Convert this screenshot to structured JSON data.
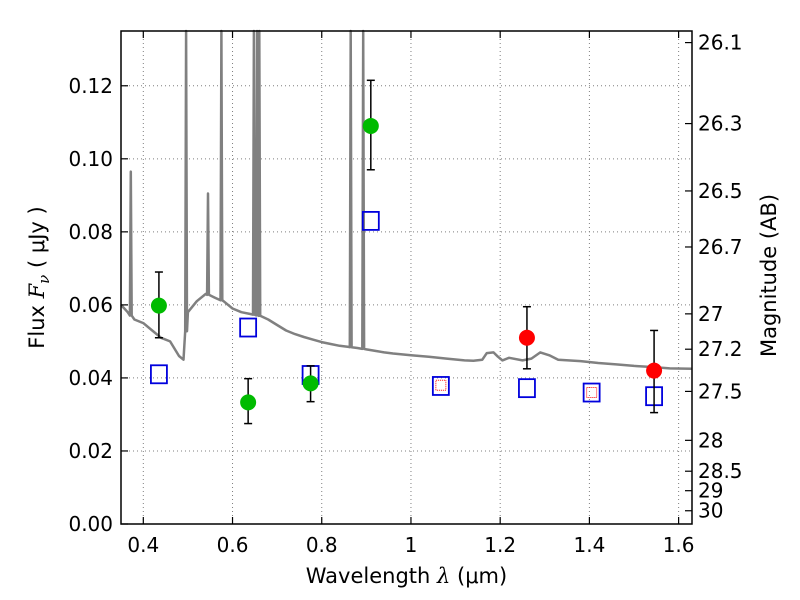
{
  "chart_data": {
    "type": "scatter",
    "xlabel": {
      "prefix": "Wavelength  ",
      "sym": "λ",
      "suffix": " (μm)"
    },
    "ylabel": {
      "prefix": "Flux  ",
      "sym": "F",
      "sub": "ν",
      "suffix": "  ( μJy )"
    },
    "ylabel_right": "Magnitude (AB)",
    "xlim": [
      0.35,
      1.63
    ],
    "ylim": [
      0,
      0.135
    ],
    "grid": true,
    "x_ticks": [
      {
        "v": 0.4,
        "label": "0.4"
      },
      {
        "v": 0.6,
        "label": "0.6"
      },
      {
        "v": 0.8,
        "label": "0.8"
      },
      {
        "v": 1.0,
        "label": "1"
      },
      {
        "v": 1.2,
        "label": "1.2"
      },
      {
        "v": 1.4,
        "label": "1.4"
      },
      {
        "v": 1.6,
        "label": "1.6"
      }
    ],
    "y_ticks": [
      {
        "v": 0.0,
        "label": "0.00"
      },
      {
        "v": 0.02,
        "label": "0.02"
      },
      {
        "v": 0.04,
        "label": "0.04"
      },
      {
        "v": 0.06,
        "label": "0.06"
      },
      {
        "v": 0.08,
        "label": "0.08"
      },
      {
        "v": 0.1,
        "label": "0.10"
      },
      {
        "v": 0.12,
        "label": "0.12"
      }
    ],
    "mag_ticks": [
      {
        "mag": 26.1,
        "label": "26.1"
      },
      {
        "mag": 26.3,
        "label": "26.3"
      },
      {
        "mag": 26.5,
        "label": "26.5"
      },
      {
        "mag": 26.7,
        "label": "26.7"
      },
      {
        "mag": 27,
        "label": "27"
      },
      {
        "mag": 27.2,
        "label": "27.2"
      },
      {
        "mag": 27.5,
        "label": "27.5"
      },
      {
        "mag": 28,
        "label": "28"
      },
      {
        "mag": 28.5,
        "label": "28.5"
      },
      {
        "mag": 29,
        "label": "29"
      },
      {
        "mag": 30,
        "label": "30"
      }
    ],
    "green_points": [
      {
        "x": 0.435,
        "y": 0.0598,
        "yerr_lo": 0.0088,
        "yerr_hi": 0.0092
      },
      {
        "x": 0.635,
        "y": 0.0333,
        "yerr_lo": 0.0058,
        "yerr_hi": 0.0065
      },
      {
        "x": 0.775,
        "y": 0.0385,
        "yerr_lo": 0.005,
        "yerr_hi": 0.0048
      },
      {
        "x": 0.91,
        "y": 0.109,
        "yerr_lo": 0.012,
        "yerr_hi": 0.0125
      }
    ],
    "red_points": [
      {
        "x": 1.26,
        "y": 0.051,
        "yerr_lo": 0.0085,
        "yerr_hi": 0.0085
      },
      {
        "x": 1.545,
        "y": 0.042,
        "yerr_lo": 0.0115,
        "yerr_hi": 0.011
      }
    ],
    "blue_squares": [
      {
        "x": 0.435,
        "y": 0.041
      },
      {
        "x": 0.635,
        "y": 0.0538
      },
      {
        "x": 0.775,
        "y": 0.0408
      },
      {
        "x": 0.91,
        "y": 0.083
      },
      {
        "x": 1.067,
        "y": 0.0378
      },
      {
        "x": 1.26,
        "y": 0.0372
      },
      {
        "x": 1.405,
        "y": 0.036
      },
      {
        "x": 1.545,
        "y": 0.035
      }
    ],
    "red_small_squares": [
      {
        "x": 1.067,
        "y": 0.038
      },
      {
        "x": 1.405,
        "y": 0.036
      }
    ],
    "sed_continuum": [
      [
        0.35,
        0.06
      ],
      [
        0.365,
        0.058
      ],
      [
        0.38,
        0.056
      ],
      [
        0.4,
        0.055
      ],
      [
        0.42,
        0.053
      ],
      [
        0.44,
        0.051
      ],
      [
        0.46,
        0.05
      ],
      [
        0.48,
        0.046
      ],
      [
        0.49,
        0.045
      ],
      [
        0.5,
        0.058
      ],
      [
        0.52,
        0.061
      ],
      [
        0.54,
        0.063
      ],
      [
        0.56,
        0.062
      ],
      [
        0.58,
        0.061
      ],
      [
        0.6,
        0.059
      ],
      [
        0.62,
        0.058
      ],
      [
        0.64,
        0.0575
      ],
      [
        0.66,
        0.057
      ],
      [
        0.68,
        0.056
      ],
      [
        0.7,
        0.0545
      ],
      [
        0.72,
        0.053
      ],
      [
        0.74,
        0.052
      ],
      [
        0.76,
        0.0512
      ],
      [
        0.78,
        0.0505
      ],
      [
        0.8,
        0.0498
      ],
      [
        0.82,
        0.0493
      ],
      [
        0.84,
        0.0488
      ],
      [
        0.86,
        0.0485
      ],
      [
        0.88,
        0.0482
      ],
      [
        0.9,
        0.0478
      ],
      [
        0.92,
        0.0474
      ],
      [
        0.94,
        0.047
      ],
      [
        0.96,
        0.0467
      ],
      [
        1.0,
        0.0462
      ],
      [
        1.04,
        0.0458
      ],
      [
        1.08,
        0.0453
      ],
      [
        1.12,
        0.0448
      ],
      [
        1.14,
        0.0447
      ],
      [
        1.16,
        0.045
      ],
      [
        1.17,
        0.0468
      ],
      [
        1.185,
        0.047
      ],
      [
        1.195,
        0.0458
      ],
      [
        1.205,
        0.0448
      ],
      [
        1.22,
        0.0455
      ],
      [
        1.25,
        0.0448
      ],
      [
        1.27,
        0.0453
      ],
      [
        1.29,
        0.047
      ],
      [
        1.31,
        0.0462
      ],
      [
        1.33,
        0.045
      ],
      [
        1.38,
        0.0446
      ],
      [
        1.42,
        0.0441
      ],
      [
        1.46,
        0.0437
      ],
      [
        1.5,
        0.0433
      ],
      [
        1.54,
        0.043
      ],
      [
        1.58,
        0.0426
      ],
      [
        1.63,
        0.0425
      ]
    ],
    "sed_lines": [
      {
        "x": 0.372,
        "y": 0.0965
      },
      {
        "x": 0.496,
        "y": 0.135
      },
      {
        "x": 0.545,
        "y": 0.0905
      },
      {
        "x": 0.575,
        "y": 0.135
      },
      {
        "x": 0.648,
        "y": 0.135
      },
      {
        "x": 0.655,
        "y": 0.135
      },
      {
        "x": 0.66,
        "y": 0.135
      },
      {
        "x": 0.865,
        "y": 0.135
      },
      {
        "x": 0.893,
        "y": 0.135
      }
    ],
    "colors": {
      "sed": "#808080",
      "green": "#00bb00",
      "red": "#ff0000",
      "blue": "#0000dd",
      "grid": "#7f7f7f",
      "axes": "#000000"
    }
  }
}
